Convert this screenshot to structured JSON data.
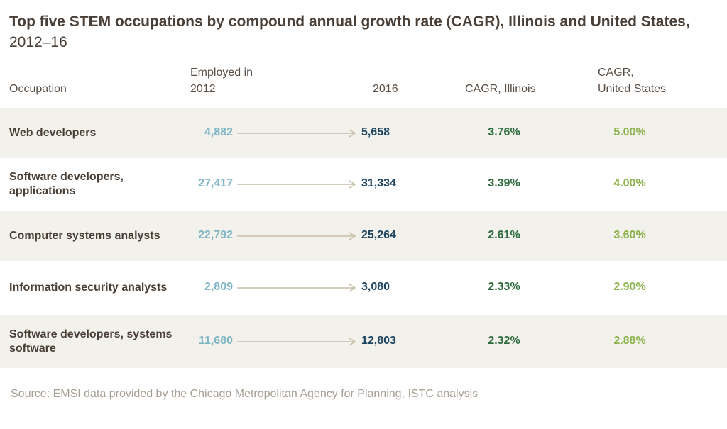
{
  "title": "Top five STEM occupations by compound annual growth rate (CAGR), Illinois and United States,",
  "subtitle": "2012–16",
  "headers": {
    "occupation": "Occupation",
    "employed_in": "Employed in",
    "year_start": "2012",
    "year_end": "2016",
    "cagr_illinois": "CAGR, Illinois",
    "cagr_us_line1": "CAGR,",
    "cagr_us_line2": "United States"
  },
  "colors": {
    "value_2012": "#7fb6c6",
    "value_2016": "#1e4560",
    "cagr_illinois": "#2d6b3e",
    "cagr_us": "#8bb24a",
    "arrow": "#c9bda6",
    "band": "#f2f1ec"
  },
  "chart_data": {
    "type": "table",
    "columns": [
      "Occupation",
      "2012",
      "2016",
      "CAGR, Illinois",
      "CAGR, United States"
    ],
    "rows": [
      {
        "occupation": "Web developers",
        "employed_2012": "4,882",
        "employed_2016": "5,658",
        "cagr_illinois": "3.76%",
        "cagr_us": "5.00%"
      },
      {
        "occupation": "Software developers, applications",
        "employed_2012": "27,417",
        "employed_2016": "31,334",
        "cagr_illinois": "3.39%",
        "cagr_us": "4.00%"
      },
      {
        "occupation": "Computer systems analysts",
        "employed_2012": "22,792",
        "employed_2016": "25,264",
        "cagr_illinois": "2.61%",
        "cagr_us": "3.60%"
      },
      {
        "occupation": "Information security analysts",
        "employed_2012": "2,809",
        "employed_2016": "3,080",
        "cagr_illinois": "2.33%",
        "cagr_us": "2.90%"
      },
      {
        "occupation": "Software developers, systems software",
        "employed_2012": "11,680",
        "employed_2016": "12,803",
        "cagr_illinois": "2.32%",
        "cagr_us": "2.88%"
      }
    ]
  },
  "source": "Source: EMSI data provided by the Chicago Metropolitan Agency for Planning, ISTC analysis"
}
